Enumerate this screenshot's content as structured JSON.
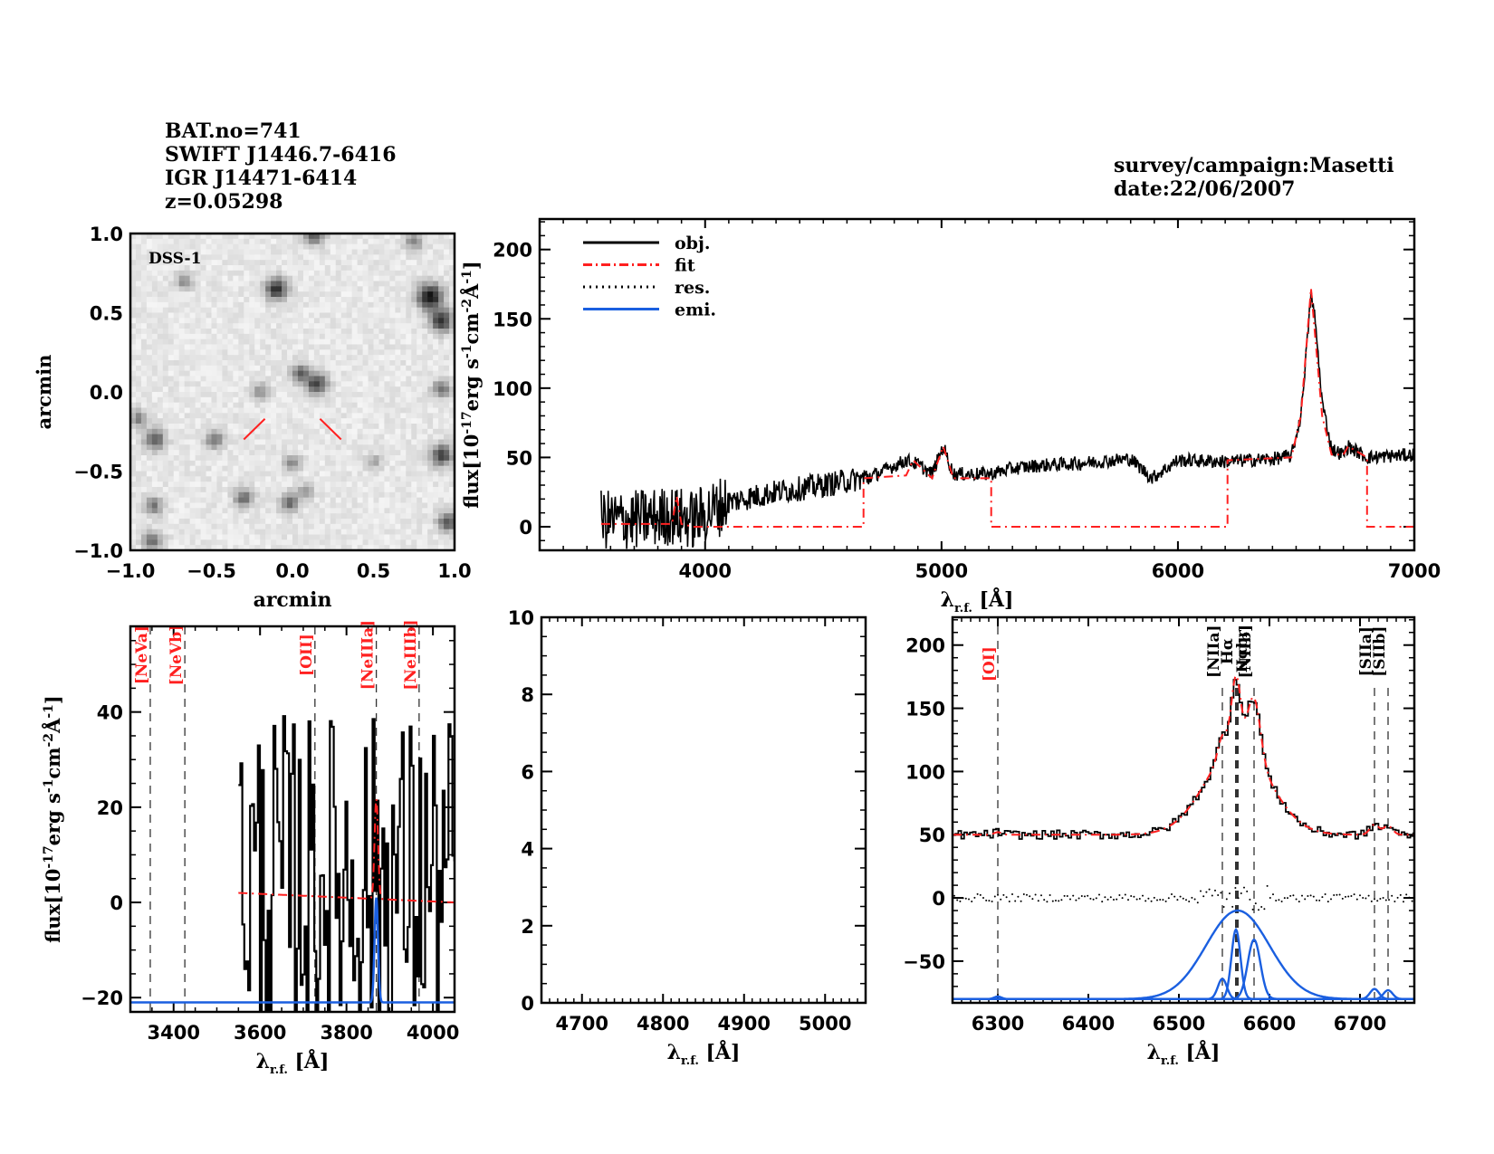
{
  "header_left": {
    "lines": [
      "BAT.no=741",
      "SWIFT J1446.7-6416",
      "IGR J14471-6414",
      "z=0.05298"
    ]
  },
  "header_right": {
    "lines": [
      "survey/campaign:Masetti",
      "date:22/06/2007"
    ]
  },
  "colors": {
    "object": "#000000",
    "fit": "#ff2020",
    "residual": "#000000",
    "emission": "#1a5fe0",
    "marker": "#ff2020"
  },
  "chart_data": [
    {
      "id": "dss_image",
      "type": "heatmap",
      "title": "",
      "annotation": "DSS-1",
      "xlabel": "arcmin",
      "ylabel": "arcmin",
      "xlim": [
        -1.0,
        1.0
      ],
      "ylim": [
        -1.0,
        1.0
      ],
      "xticks": [
        "-1.0",
        "-0.5",
        "0.0",
        "0.5",
        "1.0"
      ],
      "yticks": [
        "-1.0",
        "-0.5",
        "0.0",
        "0.5",
        "1.0"
      ],
      "sources": [
        {
          "x": -0.1,
          "y": 0.65,
          "b": 0.8
        },
        {
          "x": 0.85,
          "y": 0.6,
          "b": 1.0
        },
        {
          "x": 0.92,
          "y": 0.45,
          "b": 0.8
        },
        {
          "x": 0.15,
          "y": 0.05,
          "b": 0.75
        },
        {
          "x": 0.05,
          "y": 0.12,
          "b": 0.55
        },
        {
          "x": -0.2,
          "y": 0.0,
          "b": 0.4
        },
        {
          "x": 0.92,
          "y": 0.02,
          "b": 0.5
        },
        {
          "x": -0.85,
          "y": -0.3,
          "b": 0.65
        },
        {
          "x": -0.48,
          "y": -0.3,
          "b": 0.5
        },
        {
          "x": -0.95,
          "y": -0.17,
          "b": 0.45
        },
        {
          "x": 0.92,
          "y": -0.4,
          "b": 0.75
        },
        {
          "x": 0.0,
          "y": -0.45,
          "b": 0.4
        },
        {
          "x": -0.3,
          "y": -0.67,
          "b": 0.55
        },
        {
          "x": -0.02,
          "y": -0.7,
          "b": 0.55
        },
        {
          "x": 0.08,
          "y": -0.63,
          "b": 0.35
        },
        {
          "x": -0.86,
          "y": -0.72,
          "b": 0.5
        },
        {
          "x": -0.86,
          "y": -0.94,
          "b": 0.55
        },
        {
          "x": 0.96,
          "y": -0.82,
          "b": 0.65
        },
        {
          "x": -0.67,
          "y": 0.7,
          "b": 0.4
        },
        {
          "x": 0.13,
          "y": 1.0,
          "b": 0.7
        },
        {
          "x": 0.75,
          "y": 0.95,
          "b": 0.45
        },
        {
          "x": 0.5,
          "y": -0.44,
          "b": 0.3
        }
      ],
      "target_marker": {
        "x": 0.0,
        "y": -0.15,
        "color": "#ff2020"
      }
    },
    {
      "id": "full_spectrum",
      "type": "line",
      "xlabel": "λr.f. [Å]",
      "ylabel": "flux[10^-17 erg s^-1 cm^-2 Å^-1]",
      "xlim": [
        3300,
        7000
      ],
      "ylim": [
        -17,
        222
      ],
      "xticks": [
        "4000",
        "5000",
        "6000",
        "7000"
      ],
      "yticks": [
        "0",
        "50",
        "100",
        "150",
        "200"
      ],
      "legend": {
        "position": "top-left",
        "entries": [
          {
            "label": "obj.",
            "style": "solid",
            "color": "#000000"
          },
          {
            "label": "fit",
            "style": "dash-dot",
            "color": "#ff2020"
          },
          {
            "label": "res.",
            "style": "dotted",
            "color": "#000000"
          },
          {
            "label": "emi.",
            "style": "solid",
            "color": "#1a5fe0"
          }
        ]
      },
      "series": [
        {
          "name": "obj.",
          "x": [
            3560,
            3700,
            3850,
            3950,
            4100,
            4300,
            4500,
            4700,
            4850,
            4900,
            4960,
            5007,
            5050,
            5200,
            5300,
            5400,
            5600,
            5800,
            5890,
            6000,
            6200,
            6400,
            6480,
            6520,
            6550,
            6563,
            6580,
            6610,
            6650,
            6700,
            6720,
            6800,
            7000
          ],
          "y": [
            5,
            5,
            8,
            5,
            18,
            25,
            30,
            36,
            48,
            45,
            38,
            58,
            38,
            38,
            42,
            44,
            46,
            49,
            35,
            48,
            47,
            49,
            51,
            80,
            140,
            168,
            150,
            90,
            56,
            52,
            58,
            50,
            52
          ]
        },
        {
          "name": "fit",
          "x": [
            3560,
            3860,
            3880,
            3900,
            3950,
            4670,
            4670,
            4850,
            4880,
            4960,
            5007,
            5050,
            5210,
            5210,
            6210,
            6210,
            6480,
            6520,
            6563,
            6610,
            6650,
            6700,
            6720,
            6800,
            6800,
            7000
          ],
          "y": [
            2,
            2,
            22,
            2,
            0,
            0,
            35,
            37,
            48,
            35,
            58,
            35,
            35,
            0,
            0,
            48,
            50,
            80,
            172,
            80,
            52,
            52,
            58,
            50,
            0,
            0
          ]
        }
      ]
    },
    {
      "id": "zoom_blue",
      "type": "line",
      "xlabel": "λr.f. [Å]",
      "ylabel": "flux[10^-17 erg s^-1 cm^-2 Å^-1]",
      "xlim": [
        3300,
        4050
      ],
      "ylim": [
        -23,
        58
      ],
      "xticks": [
        "3400",
        "3600",
        "3800",
        "4000"
      ],
      "yticks": [
        "-20",
        "0",
        "20",
        "40"
      ],
      "line_markers": [
        {
          "label": "[NeVa]",
          "x": 3346,
          "color": "#ff2020"
        },
        {
          "label": "[NeVb]",
          "x": 3426,
          "color": "#ff2020"
        },
        {
          "label": "[OII]",
          "x": 3727,
          "color": "#ff2020"
        },
        {
          "label": "[NeIIIa]",
          "x": 3869,
          "color": "#ff2020"
        },
        {
          "label": "[NeIIIb]",
          "x": 3968,
          "color": "#ff2020"
        }
      ],
      "series": [
        {
          "name": "fit",
          "x": [
            3550,
            3860,
            3869,
            3878,
            4050
          ],
          "y": [
            2,
            1,
            22,
            1,
            0
          ]
        },
        {
          "name": "emi.",
          "x": [
            3300,
            3860,
            3869,
            3878,
            4050
          ],
          "y": [
            -21,
            -21,
            1,
            -21,
            -21
          ]
        }
      ]
    },
    {
      "id": "zoom_hbeta",
      "type": "line",
      "xlabel": "λr.f. [Å]",
      "ylabel": "",
      "xlim": [
        4650,
        5050
      ],
      "ylim": [
        0,
        10
      ],
      "xticks": [
        "4700",
        "4800",
        "4900",
        "5000"
      ],
      "yticks": [
        "0",
        "2",
        "4",
        "6",
        "8",
        "10"
      ],
      "series": []
    },
    {
      "id": "zoom_halpha",
      "type": "line",
      "xlabel": "λr.f. [Å]",
      "ylabel": "",
      "xlim": [
        6250,
        6760
      ],
      "ylim": [
        -83,
        222
      ],
      "xticks": [
        "6300",
        "6400",
        "6500",
        "6600",
        "6700"
      ],
      "yticks": [
        "-50",
        "0",
        "50",
        "100",
        "150",
        "200"
      ],
      "line_markers": [
        {
          "label": "[OI]",
          "x": 6300,
          "color": "#ff2020"
        },
        {
          "label": "[NIIa]",
          "x": 6548,
          "color": "#000000"
        },
        {
          "label": "Hα",
          "x": 6563,
          "color": "#000000"
        },
        {
          "label": "Hαbr",
          "x": 6565,
          "color": "#000000"
        },
        {
          "label": "[NIIb]",
          "x": 6583,
          "color": "#000000"
        },
        {
          "label": "[SIIa]",
          "x": 6716,
          "color": "#000000"
        },
        {
          "label": "[SIIb]",
          "x": 6731,
          "color": "#000000"
        }
      ],
      "continuum": 50,
      "emission_components": [
        {
          "name": "Hα broad",
          "center": 6565,
          "amp": 70,
          "sigma": 35
        },
        {
          "name": "Hα narrow",
          "center": 6563,
          "amp": 55,
          "sigma": 5
        },
        {
          "name": "[NII]b",
          "center": 6583,
          "amp": 47,
          "sigma": 7
        },
        {
          "name": "[NII]a",
          "center": 6548,
          "amp": 16,
          "sigma": 5
        },
        {
          "name": "[OI]",
          "center": 6300,
          "amp": 2,
          "sigma": 4
        },
        {
          "name": "[SII]a",
          "center": 6716,
          "amp": 8,
          "sigma": 5
        },
        {
          "name": "[SII]b",
          "center": 6731,
          "amp": 7,
          "sigma": 5
        }
      ],
      "emission_baseline": -80
    }
  ]
}
